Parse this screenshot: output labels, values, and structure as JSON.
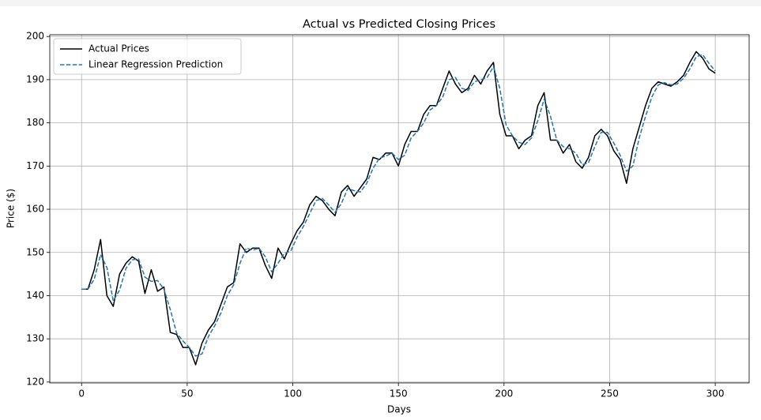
{
  "chart_data": {
    "type": "line",
    "title": "Actual vs Predicted Closing Prices",
    "x_label": "Days",
    "y_label": "Price ($)",
    "x": [
      0,
      3,
      6,
      9,
      12,
      15,
      18,
      21,
      24,
      27,
      30,
      33,
      36,
      39,
      42,
      45,
      48,
      51,
      54,
      57,
      60,
      63,
      66,
      69,
      72,
      75,
      78,
      81,
      84,
      87,
      90,
      93,
      96,
      99,
      102,
      105,
      108,
      111,
      114,
      117,
      120,
      123,
      126,
      129,
      132,
      135,
      138,
      141,
      144,
      147,
      150,
      153,
      156,
      159,
      162,
      165,
      168,
      171,
      174,
      177,
      180,
      183,
      186,
      189,
      192,
      195,
      198,
      201,
      204,
      207,
      210,
      213,
      216,
      219,
      222,
      225,
      228,
      231,
      234,
      237,
      240,
      243,
      246,
      249,
      252,
      255,
      258,
      261,
      264,
      267,
      270,
      273,
      276,
      279,
      282,
      285,
      288,
      291,
      294,
      297,
      300
    ],
    "series": [
      {
        "name": "Actual Prices",
        "color": "#000000",
        "dash": false,
        "values": [
          141.5,
          141.5,
          146,
          153,
          140,
          137.5,
          145,
          147.5,
          149,
          148,
          140.5,
          146,
          141,
          142,
          131.5,
          131,
          128,
          128,
          124,
          129,
          132,
          134,
          138,
          142,
          143,
          152,
          150,
          151,
          151,
          147,
          144,
          151,
          148.5,
          152,
          155,
          157,
          161,
          163,
          162,
          160,
          158.5,
          164,
          165.5,
          163,
          165,
          167,
          172,
          171.5,
          173,
          173,
          170,
          175,
          178,
          178,
          182,
          184,
          184,
          188,
          192,
          189,
          187,
          188,
          191,
          189,
          192,
          194,
          182,
          177,
          177,
          174,
          176,
          177,
          184,
          187,
          176,
          176,
          173,
          175,
          171,
          169.5,
          172,
          177,
          178.5,
          177,
          173.5,
          171.5,
          166,
          174,
          179,
          184,
          188,
          189.5,
          189,
          188.5,
          189.5,
          191,
          194,
          196.5,
          195,
          192.5,
          191.5
        ]
      },
      {
        "name": "Linear Regression Prediction",
        "color": "#1f77b4",
        "dash": true,
        "values": [
          141.5,
          141.5,
          143.8,
          149.5,
          146.5,
          138.8,
          141.3,
          146.3,
          148.3,
          148.5,
          144.3,
          143.3,
          143.5,
          141.5,
          136.8,
          131.3,
          129.5,
          128,
          126,
          126.5,
          130.5,
          133,
          136,
          140,
          142.5,
          147.5,
          151,
          150.5,
          151,
          149,
          145.5,
          147.5,
          149.8,
          150.3,
          153.5,
          156,
          159,
          162,
          162.5,
          161,
          159.3,
          161.3,
          164.8,
          164.3,
          164,
          166,
          169.5,
          171.8,
          172.3,
          173,
          171.5,
          172.5,
          176.5,
          178,
          180,
          183,
          184,
          186,
          190,
          190.5,
          188,
          187.5,
          189.5,
          190,
          190.5,
          193,
          188,
          179.5,
          177,
          175.5,
          175,
          176.5,
          180.5,
          185.5,
          181.5,
          176,
          174.5,
          174,
          173,
          170.3,
          170.8,
          174.5,
          177.8,
          177.8,
          175.3,
          172.5,
          168.8,
          170,
          176.5,
          181.5,
          186,
          188.8,
          189.3,
          188.8,
          189,
          190.3,
          192.5,
          195.3,
          195.8,
          193.8,
          192
        ]
      }
    ],
    "xlim": [
      -15.05,
      316.05
    ],
    "ylim": [
      119.8,
      200.4
    ],
    "xticks": [
      0,
      50,
      100,
      150,
      200,
      250,
      300
    ],
    "yticks": [
      120,
      130,
      140,
      150,
      160,
      170,
      180,
      190,
      200
    ],
    "grid": true,
    "legend": "upper left"
  }
}
